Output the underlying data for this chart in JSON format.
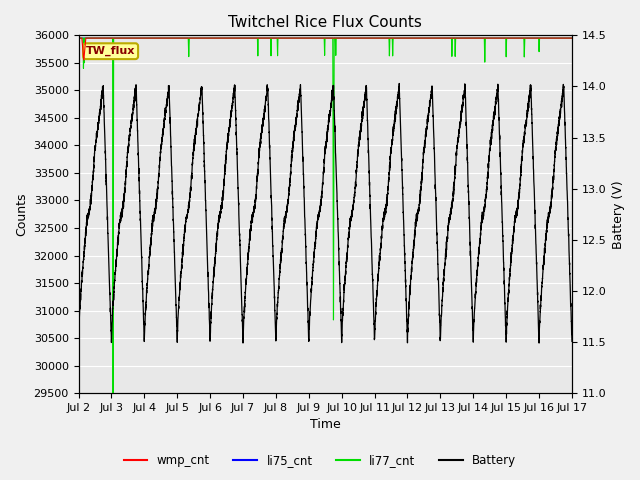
{
  "title": "Twitchel Rice Flux Counts",
  "xlabel": "Time",
  "ylabel_left": "Counts",
  "ylabel_right": "Battery (V)",
  "ylim_left": [
    29500,
    36000
  ],
  "ylim_right": [
    11.0,
    14.5
  ],
  "xlim": [
    2.0,
    17.0
  ],
  "x_ticks": [
    2,
    3,
    4,
    5,
    6,
    7,
    8,
    9,
    10,
    11,
    12,
    13,
    14,
    15,
    16,
    17
  ],
  "x_tick_labels": [
    "Jul 2",
    "Jul 3",
    "Jul 4",
    "Jul 5",
    "Jul 6",
    "Jul 7",
    "Jul 8",
    "Jul 9",
    "Jul 10",
    "Jul 11",
    "Jul 12",
    "Jul 13",
    "Jul 14",
    "Jul 15",
    "Jul 16",
    "Jul 17"
  ],
  "yticks_left": [
    29500,
    30000,
    30500,
    31000,
    31500,
    32000,
    32500,
    33000,
    33500,
    34000,
    34500,
    35000,
    35500,
    36000
  ],
  "yticks_right": [
    11.0,
    11.5,
    12.0,
    12.5,
    13.0,
    13.5,
    14.0,
    14.5
  ],
  "fig_facecolor": "#f0f0f0",
  "ax_facecolor": "#e8e8e8",
  "grid_color": "#ffffff",
  "legend_label_box": "TW_flux",
  "legend_box_facecolor": "#ffff99",
  "legend_box_edgecolor": "#bbaa00",
  "legend_box_textcolor": "#880000",
  "li77_color": "#00dd00",
  "battery_color": "#000000",
  "wmp_color": "#ff0000",
  "li75_color": "#0000ff",
  "figsize": [
    6.4,
    4.8
  ],
  "dpi": 100,
  "batt_peak": 14.0,
  "batt_trough": 11.5,
  "batt_peak_secondary": 12.75
}
